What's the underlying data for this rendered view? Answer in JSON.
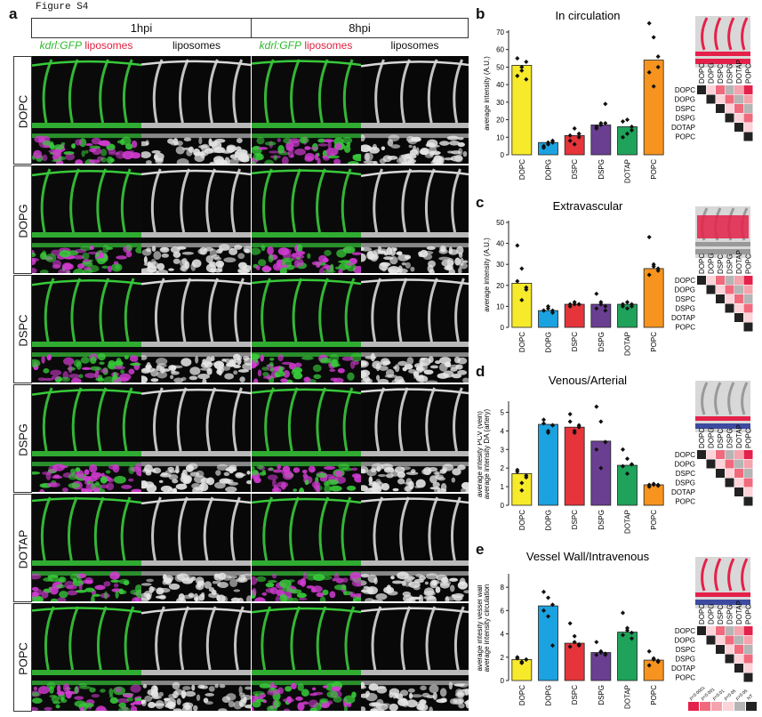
{
  "figure_label": "Figure S4",
  "panel_letters": [
    "a",
    "b",
    "c",
    "d",
    "e"
  ],
  "grid": {
    "timepoints": [
      "1hpi",
      "8hpi"
    ],
    "channel_labels": [
      {
        "green": "kdrl:GFP",
        "red": "liposomes"
      },
      {
        "gray": "liposomes"
      },
      {
        "green": "kdrl:GFP",
        "red": "liposomes"
      },
      {
        "gray": "liposomes"
      }
    ],
    "rows": [
      "DOPC",
      "DOPG",
      "DSPC",
      "DSPG",
      "DOTAP",
      "POPC"
    ]
  },
  "colors": {
    "DOPC": "#f7ea2b",
    "DOPG": "#1ba2e0",
    "DSPC": "#e5343a",
    "DSPG": "#6a3f92",
    "DOTAP": "#1fa25a",
    "POPC": "#f6941f",
    "green": "#38c93a",
    "magenta": "#d23cd2",
    "red": "#e4214a"
  },
  "significance_legend": [
    "p<0.0001",
    "p<0.001",
    "p<0.01",
    "p<0.05",
    "p>0.05",
    "NT"
  ],
  "charts": [
    {
      "letter": "b",
      "title": "In circulation",
      "ylabel_lines": [
        "average intensity (A.U.)"
      ],
      "categories": [
        "DOPC",
        "DOPG",
        "DSPC",
        "DSPG",
        "DOTAP",
        "POPC"
      ],
      "values": [
        51,
        7,
        11,
        17,
        16,
        54
      ],
      "points": [
        [
          45,
          50,
          53,
          55,
          48,
          43
        ],
        [
          5,
          6,
          8,
          4,
          7,
          7
        ],
        [
          8,
          15,
          12,
          11,
          6,
          10
        ],
        [
          15,
          18,
          29,
          16,
          17,
          18
        ],
        [
          10,
          20,
          14,
          19,
          12,
          16
        ],
        [
          75,
          67,
          50,
          47,
          39,
          56
        ]
      ],
      "ylim": [
        0,
        70
      ],
      "yticks": [
        0,
        10,
        20,
        30,
        40,
        50,
        60,
        70
      ]
    },
    {
      "letter": "c",
      "title": "Extravascular",
      "ylabel_lines": [
        "average intensity (A.U.)"
      ],
      "categories": [
        "DOPC",
        "DOPG",
        "DSPC",
        "DSPG",
        "DOTAP",
        "POPC"
      ],
      "values": [
        21,
        8,
        11,
        11,
        11,
        28
      ],
      "points": [
        [
          39,
          28,
          19,
          22,
          13,
          18
        ],
        [
          8,
          9,
          7,
          8,
          10,
          8
        ],
        [
          11,
          12,
          11,
          10,
          11,
          11
        ],
        [
          9,
          12,
          8,
          16,
          11,
          10
        ],
        [
          10,
          12,
          10,
          11,
          9,
          11
        ],
        [
          43,
          29,
          27,
          25,
          30,
          28
        ]
      ],
      "ylim": [
        0,
        50
      ],
      "yticks": [
        0,
        10,
        20,
        30,
        40,
        50
      ]
    },
    {
      "letter": "d",
      "title": "Venous/Arterial",
      "ylabel_lines": [
        "average intesity PCV (vein)",
        "average intensity DA (artery)"
      ],
      "categories": [
        "DOPC",
        "DOPG",
        "DSPC",
        "DSPG",
        "DOTAP",
        "POPC"
      ],
      "values": [
        1.7,
        4.35,
        4.2,
        3.45,
        2.15,
        1.1
      ],
      "points": [
        [
          1.9,
          1.2,
          1.6,
          1.8,
          0.8,
          1.5
        ],
        [
          4.4,
          3.9,
          4.3,
          4.6,
          4.0,
          4.3
        ],
        [
          4.9,
          3.9,
          4.2,
          4.5,
          4.0,
          4.3
        ],
        [
          5.3,
          4.5,
          3.4,
          3.0,
          2.0,
          3.4
        ],
        [
          3.0,
          2.5,
          2.2,
          2.1,
          1.7,
          2.2
        ],
        [
          1.1,
          1.1,
          1.05,
          1.0,
          1.15,
          1.1
        ]
      ],
      "ylim": [
        0,
        5.5
      ],
      "yticks": [
        0,
        1,
        2,
        3,
        4,
        5
      ]
    },
    {
      "letter": "e",
      "title": "Vessel Wall/Intravenous",
      "ylabel_lines": [
        "average intesity vessel wall",
        "average intensity circulation"
      ],
      "categories": [
        "DOPC",
        "DOPG",
        "DSPC",
        "DSPG",
        "DOTAP",
        "POPC"
      ],
      "values": [
        1.8,
        6.4,
        3.2,
        2.4,
        4.15,
        1.75
      ],
      "points": [
        [
          2.0,
          1.6,
          1.8,
          1.9,
          1.5,
          1.8
        ],
        [
          7.6,
          7.1,
          6.5,
          6.0,
          5.5,
          3.0
        ],
        [
          4.9,
          3.8,
          3.0,
          2.9,
          3.3,
          3.1
        ],
        [
          3.3,
          2.5,
          2.3,
          2.2,
          2.4,
          2.2
        ],
        [
          5.8,
          4.3,
          4.1,
          3.9,
          4.5,
          3.6
        ],
        [
          2.5,
          1.8,
          1.6,
          1.3,
          1.9,
          1.7
        ]
      ],
      "ylim": [
        0,
        9
      ],
      "yticks": [
        0,
        2,
        4,
        6,
        8
      ]
    }
  ],
  "matrix_labels": [
    "DOPC",
    "DOPG",
    "DSPC",
    "DSPG",
    "DOTAP",
    "POPC"
  ]
}
